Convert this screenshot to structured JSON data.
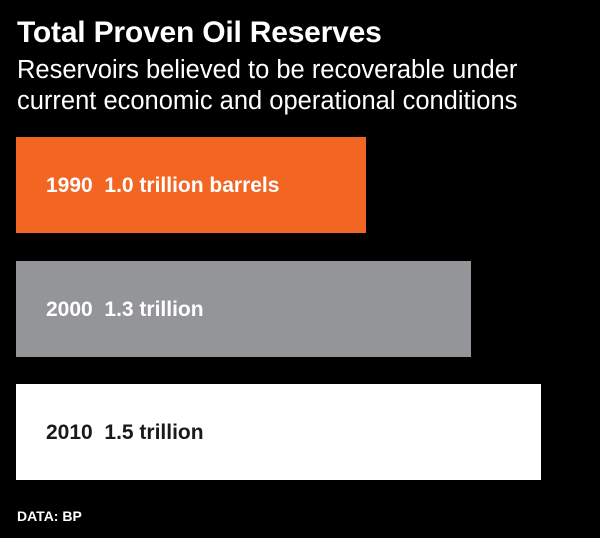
{
  "header": {
    "title": "Total Proven Oil Reserves",
    "subtitle": "Reservoirs believed to be recoverable under current economic and operational conditions"
  },
  "source": "DATA: BP",
  "colors": {
    "background": "#000000",
    "bar_1990": "#f26522",
    "bar_2000": "#939598",
    "bar_2010": "#ffffff",
    "label_light": "#ffffff",
    "label_dark": "#1a1a1a"
  },
  "chart_data": {
    "type": "bar",
    "orientation": "horizontal",
    "title": "Total Proven Oil Reserves",
    "subtitle": "Reservoirs believed to be recoverable under current economic and operational conditions",
    "unit": "trillion barrels",
    "xlim": [
      0,
      1.7
    ],
    "grid": false,
    "categories": [
      "1990",
      "2000",
      "2010"
    ],
    "values": [
      1.0,
      1.3,
      1.5
    ],
    "labels": [
      "1990  1.0 trillion barrels",
      "2000  1.3 trillion",
      "2010  1.5 trillion"
    ]
  }
}
